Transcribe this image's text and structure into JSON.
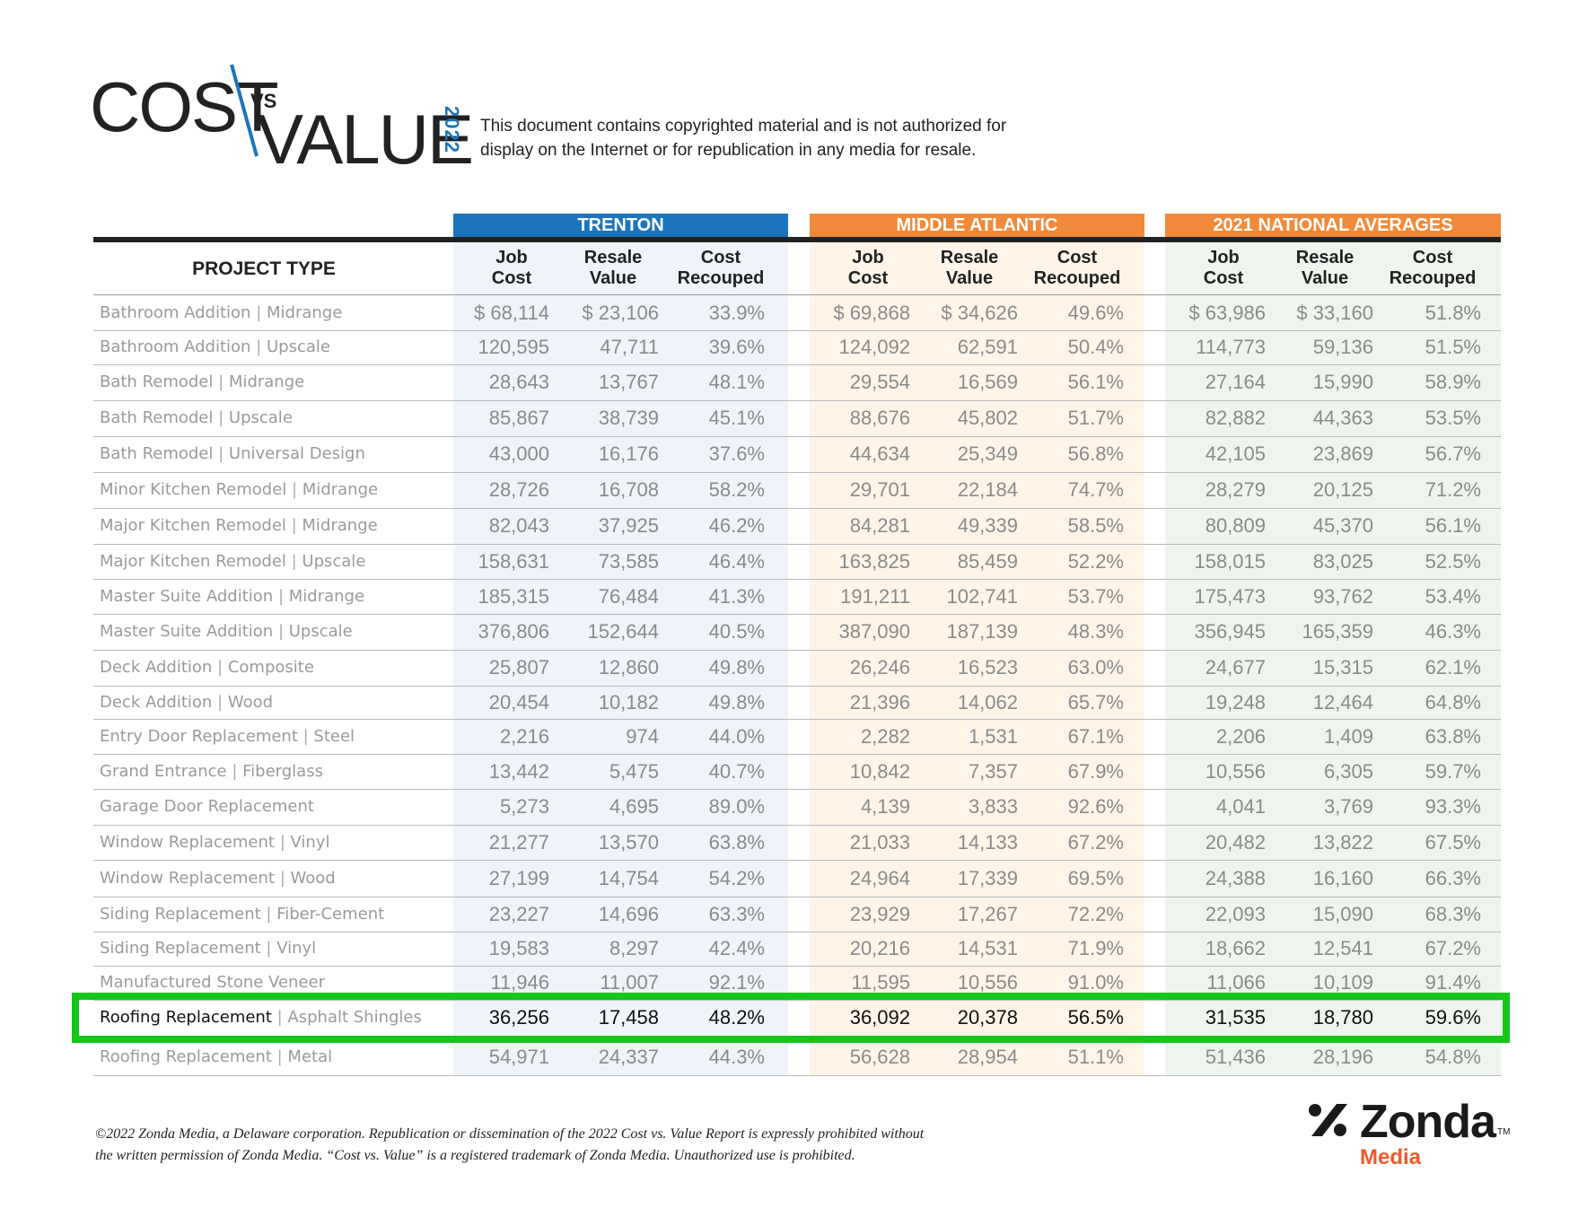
{
  "logo": {
    "cost": "COST",
    "vs": "VS",
    "value": "VALUE",
    "year": "2022"
  },
  "notice": "This document contains copyrighted material and is not authorized for display on the Internet or for republication in any media for resale.",
  "sections": {
    "trenton": "TRENTON",
    "middle_atlantic": "MIDDLE ATLANTIC",
    "national": "2021 NATIONAL AVERAGES"
  },
  "columns": {
    "project_type": "PROJECT TYPE",
    "job_cost": [
      "Job",
      "Cost"
    ],
    "resale_value": [
      "Resale",
      "Value"
    ],
    "cost_recouped": [
      "Cost",
      "Recouped"
    ]
  },
  "rows": [
    {
      "project": "Bathroom Addition",
      "subtype": "Midrange",
      "values": [
        "$ 68,114",
        "$ 23,106",
        "33.9%",
        "$ 69,868",
        "$ 34,626",
        "49.6%",
        "$ 63,986",
        "$ 33,160",
        "51.8%"
      ]
    },
    {
      "project": "Bathroom Addition",
      "subtype": "Upscale",
      "values": [
        "120,595",
        "47,711",
        "39.6%",
        "124,092",
        "62,591",
        "50.4%",
        "114,773",
        "59,136",
        "51.5%"
      ]
    },
    {
      "project": "Bath Remodel",
      "subtype": "Midrange",
      "values": [
        "28,643",
        "13,767",
        "48.1%",
        "29,554",
        "16,569",
        "56.1%",
        "27,164",
        "15,990",
        "58.9%"
      ]
    },
    {
      "project": "Bath Remodel",
      "subtype": "Upscale",
      "values": [
        "85,867",
        "38,739",
        "45.1%",
        "88,676",
        "45,802",
        "51.7%",
        "82,882",
        "44,363",
        "53.5%"
      ]
    },
    {
      "project": "Bath Remodel",
      "subtype": "Universal Design",
      "values": [
        "43,000",
        "16,176",
        "37.6%",
        "44,634",
        "25,349",
        "56.8%",
        "42,105",
        "23,869",
        "56.7%"
      ]
    },
    {
      "project": "Minor Kitchen Remodel",
      "subtype": "Midrange",
      "values": [
        "28,726",
        "16,708",
        "58.2%",
        "29,701",
        "22,184",
        "74.7%",
        "28,279",
        "20,125",
        "71.2%"
      ]
    },
    {
      "project": "Major Kitchen Remodel",
      "subtype": "Midrange",
      "values": [
        "82,043",
        "37,925",
        "46.2%",
        "84,281",
        "49,339",
        "58.5%",
        "80,809",
        "45,370",
        "56.1%"
      ]
    },
    {
      "project": "Major Kitchen Remodel",
      "subtype": "Upscale",
      "values": [
        "158,631",
        "73,585",
        "46.4%",
        "163,825",
        "85,459",
        "52.2%",
        "158,015",
        "83,025",
        "52.5%"
      ]
    },
    {
      "project": "Master Suite Addition",
      "subtype": "Midrange",
      "values": [
        "185,315",
        "76,484",
        "41.3%",
        "191,211",
        "102,741",
        "53.7%",
        "175,473",
        "93,762",
        "53.4%"
      ]
    },
    {
      "project": "Master Suite Addition",
      "subtype": "Upscale",
      "values": [
        "376,806",
        "152,644",
        "40.5%",
        "387,090",
        "187,139",
        "48.3%",
        "356,945",
        "165,359",
        "46.3%"
      ]
    },
    {
      "project": "Deck Addition",
      "subtype": "Composite",
      "values": [
        "25,807",
        "12,860",
        "49.8%",
        "26,246",
        "16,523",
        "63.0%",
        "24,677",
        "15,315",
        "62.1%"
      ]
    },
    {
      "project": "Deck Addition",
      "subtype": "Wood",
      "values": [
        "20,454",
        "10,182",
        "49.8%",
        "21,396",
        "14,062",
        "65.7%",
        "19,248",
        "12,464",
        "64.8%"
      ]
    },
    {
      "project": "Entry Door Replacement",
      "subtype": "Steel",
      "values": [
        "2,216",
        "974",
        "44.0%",
        "2,282",
        "1,531",
        "67.1%",
        "2,206",
        "1,409",
        "63.8%"
      ]
    },
    {
      "project": "Grand Entrance",
      "subtype": "Fiberglass",
      "values": [
        "13,442",
        "5,475",
        "40.7%",
        "10,842",
        "7,357",
        "67.9%",
        "10,556",
        "6,305",
        "59.7%"
      ]
    },
    {
      "project": "Garage Door Replacement",
      "subtype": "",
      "values": [
        "5,273",
        "4,695",
        "89.0%",
        "4,139",
        "3,833",
        "92.6%",
        "4,041",
        "3,769",
        "93.3%"
      ]
    },
    {
      "project": "Window Replacement",
      "subtype": "Vinyl",
      "values": [
        "21,277",
        "13,570",
        "63.8%",
        "21,033",
        "14,133",
        "67.2%",
        "20,482",
        "13,822",
        "67.5%"
      ]
    },
    {
      "project": "Window Replacement",
      "subtype": "Wood",
      "values": [
        "27,199",
        "14,754",
        "54.2%",
        "24,964",
        "17,339",
        "69.5%",
        "24,388",
        "16,160",
        "66.3%"
      ]
    },
    {
      "project": "Siding Replacement",
      "subtype": "Fiber-Cement",
      "values": [
        "23,227",
        "14,696",
        "63.3%",
        "23,929",
        "17,267",
        "72.2%",
        "22,093",
        "15,090",
        "68.3%"
      ]
    },
    {
      "project": "Siding Replacement",
      "subtype": "Vinyl",
      "values": [
        "19,583",
        "8,297",
        "42.4%",
        "20,216",
        "14,531",
        "71.9%",
        "18,662",
        "12,541",
        "67.2%"
      ]
    },
    {
      "project": "Manufactured Stone Veneer",
      "subtype": "",
      "values": [
        "11,946",
        "11,007",
        "92.1%",
        "11,595",
        "10,556",
        "91.0%",
        "11,066",
        "10,109",
        "91.4%"
      ]
    },
    {
      "project": "Roofing Replacement",
      "subtype": "Asphalt Shingles",
      "values": [
        "36,256",
        "17,458",
        "48.2%",
        "36,092",
        "20,378",
        "56.5%",
        "31,535",
        "18,780",
        "59.6%"
      ]
    },
    {
      "project": "Roofing Replacement",
      "subtype": "Metal",
      "values": [
        "54,971",
        "24,337",
        "44.3%",
        "56,628",
        "28,954",
        "51.1%",
        "51,436",
        "28,196",
        "54.8%"
      ]
    }
  ],
  "highlighted_row_index": 20,
  "legal": [
    "©2022 Zonda Media, a Delaware corporation. Republication or dissemination of the 2022 Cost vs. Value Report is expressly prohibited without",
    "the written permission of Zonda Media. “Cost vs. Value” is a registered trademark of Zonda Media. Unauthorized use is prohibited."
  ],
  "brand": {
    "name": "Zonda",
    "tm": "TM",
    "sub": "Media"
  },
  "colors": {
    "trenton": "#1c75bc",
    "regional": "#f08a3a",
    "highlight": "#16c61a",
    "brand_accent": "#f05a28"
  }
}
